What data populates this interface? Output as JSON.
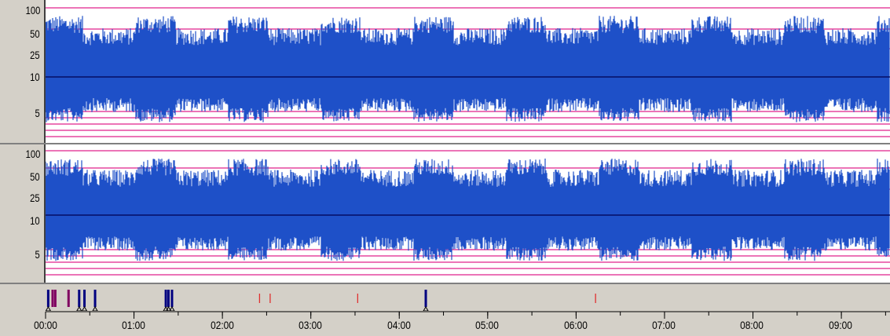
{
  "y_axis": {
    "labels": [
      "100",
      "50",
      "25",
      "10",
      "5"
    ]
  },
  "channels": [
    {
      "name": "",
      "data_color": "#1e50c8",
      "grid_color": "#e0208c",
      "mid_color": "#000050"
    },
    {
      "name": "",
      "data_color": "#1e50c8",
      "grid_color": "#e0208c",
      "mid_color": "#000050"
    }
  ],
  "time_axis": {
    "labels": [
      "00:00",
      "01:00",
      "02:00",
      "03:00",
      "04:00",
      "05:00",
      "06:00",
      "07:00",
      "08:00",
      "09:00"
    ],
    "range_hours": [
      0,
      9.55
    ]
  },
  "events": {
    "markers": [
      {
        "t": 0.03,
        "color": "#000080",
        "kind": "tall",
        "triangle": true
      },
      {
        "t": 0.08,
        "color": "#800060",
        "kind": "tall",
        "triangle": false
      },
      {
        "t": 0.11,
        "color": "#800060",
        "kind": "tall",
        "triangle": false
      },
      {
        "t": 0.26,
        "color": "#800060",
        "kind": "tall",
        "triangle": false
      },
      {
        "t": 0.38,
        "color": "#000080",
        "kind": "tall",
        "triangle": true
      },
      {
        "t": 0.44,
        "color": "#000080",
        "kind": "tall",
        "triangle": true
      },
      {
        "t": 0.56,
        "color": "#000080",
        "kind": "tall",
        "triangle": true
      },
      {
        "t": 1.36,
        "color": "#000080",
        "kind": "tall",
        "triangle": true
      },
      {
        "t": 1.39,
        "color": "#000080",
        "kind": "tall",
        "triangle": true
      },
      {
        "t": 1.43,
        "color": "#000080",
        "kind": "tall",
        "triangle": true
      },
      {
        "t": 2.42,
        "color": "#e03030",
        "kind": "short",
        "triangle": false
      },
      {
        "t": 2.54,
        "color": "#e03030",
        "kind": "short",
        "triangle": false
      },
      {
        "t": 3.53,
        "color": "#e03030",
        "kind": "short",
        "triangle": false
      },
      {
        "t": 4.3,
        "color": "#000080",
        "kind": "tall",
        "triangle": true
      },
      {
        "t": 6.22,
        "color": "#e03030",
        "kind": "short",
        "triangle": false
      }
    ]
  }
}
